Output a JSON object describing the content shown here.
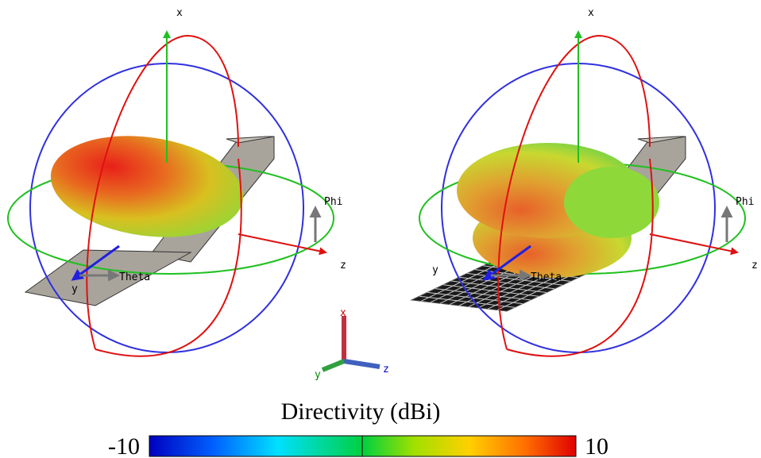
{
  "left_plot": {
    "x_axis": "x",
    "z_axis": "z",
    "y_axis": "y",
    "phi_label": "Phi",
    "theta_label": "Theta"
  },
  "right_plot": {
    "x_axis": "x",
    "z_axis": "z",
    "y_axis": "y",
    "phi_label": "Phi",
    "theta_label": "Theta"
  },
  "triad": {
    "x": "x",
    "y": "y",
    "z": "z"
  },
  "colorbar": {
    "title": "Directivity (dBi)",
    "min": -10,
    "max": 10
  }
}
